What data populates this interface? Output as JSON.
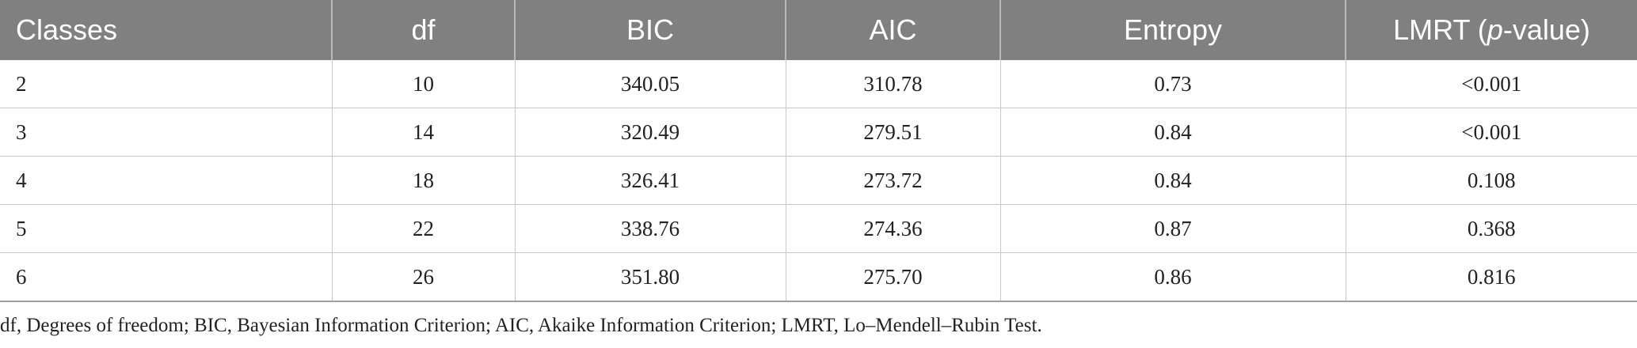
{
  "table": {
    "headers": [
      "Classes",
      "df",
      "BIC",
      "AIC",
      "Entropy"
    ],
    "last_header": {
      "prefix": "LMRT (",
      "italic": "p",
      "suffix": "-value)"
    },
    "rows": [
      [
        "2",
        "10",
        "340.05",
        "310.78",
        "0.73",
        "<0.001"
      ],
      [
        "3",
        "14",
        "320.49",
        "279.51",
        "0.84",
        "<0.001"
      ],
      [
        "4",
        "18",
        "326.41",
        "273.72",
        "0.84",
        "0.108"
      ],
      [
        "5",
        "22",
        "338.76",
        "274.36",
        "0.87",
        "0.368"
      ],
      [
        "6",
        "26",
        "351.80",
        "275.70",
        "0.86",
        "0.816"
      ]
    ]
  },
  "footnote": "df, Degrees of freedom; BIC, Bayesian Information Criterion; AIC, Akaike Information Criterion; LMRT, Lo–Mendell–Rubin Test.",
  "colors": {
    "header_bg": "#808080",
    "header_text": "#ffffff",
    "grid": "#c8c8c8"
  }
}
